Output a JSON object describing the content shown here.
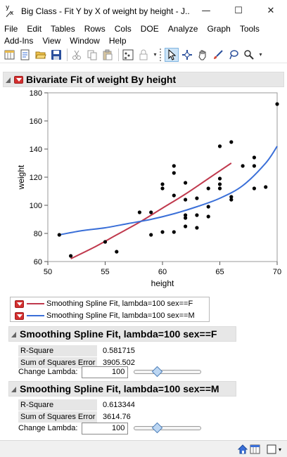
{
  "window": {
    "title": "Big Class - Fit Y by X of weight by height - J...",
    "icon_sup": "y",
    "icon_sub": "x",
    "minimize_glyph": "—",
    "maximize_glyph": "☐",
    "close_glyph": "✕"
  },
  "menu": {
    "row1": [
      "File",
      "Edit",
      "Tables",
      "Rows",
      "Cols",
      "DOE",
      "Analyze",
      "Graph",
      "Tools"
    ],
    "row2": [
      "Add-Ins",
      "View",
      "Window",
      "Help"
    ]
  },
  "report": {
    "title": "Bivariate Fit of weight By height"
  },
  "chart_data": {
    "type": "scatter",
    "xlabel": "height",
    "ylabel": "weight",
    "xlim": [
      50,
      70
    ],
    "ylim": [
      60,
      180
    ],
    "xticks": [
      50,
      55,
      60,
      65,
      70
    ],
    "yticks": [
      60,
      80,
      100,
      120,
      140,
      160,
      180
    ],
    "grid": false,
    "points": [
      [
        51,
        79
      ],
      [
        52,
        64
      ],
      [
        55,
        74
      ],
      [
        56,
        67
      ],
      [
        58,
        95
      ],
      [
        59,
        79
      ],
      [
        59,
        95
      ],
      [
        60,
        81
      ],
      [
        60,
        112
      ],
      [
        60,
        115
      ],
      [
        61,
        81
      ],
      [
        61,
        107
      ],
      [
        61,
        123
      ],
      [
        61,
        128
      ],
      [
        62,
        85
      ],
      [
        62,
        91
      ],
      [
        62,
        93
      ],
      [
        62,
        104
      ],
      [
        62,
        116
      ],
      [
        63,
        84
      ],
      [
        63,
        93
      ],
      [
        63,
        105
      ],
      [
        64,
        92
      ],
      [
        64,
        99
      ],
      [
        64,
        112
      ],
      [
        65,
        112
      ],
      [
        65,
        115
      ],
      [
        65,
        119
      ],
      [
        65,
        142
      ],
      [
        66,
        104
      ],
      [
        66,
        106
      ],
      [
        66,
        145
      ],
      [
        67,
        128
      ],
      [
        68,
        112
      ],
      [
        68,
        128
      ],
      [
        68,
        134
      ],
      [
        69,
        113
      ],
      [
        70,
        172
      ]
    ],
    "series": [
      {
        "name": "Smoothing Spline Fit, lambda=100 sex==F",
        "color": "#c0394d",
        "values": [
          [
            52,
            62
          ],
          [
            54,
            70
          ],
          [
            56,
            79
          ],
          [
            58,
            88
          ],
          [
            60,
            98
          ],
          [
            62,
            108
          ],
          [
            64,
            119
          ],
          [
            66,
            130
          ]
        ]
      },
      {
        "name": "Smoothing Spline Fit, lambda=100 sex==M",
        "color": "#3a6fd8",
        "values": [
          [
            51,
            79
          ],
          [
            53,
            82
          ],
          [
            55,
            84
          ],
          [
            57,
            87
          ],
          [
            59,
            90
          ],
          [
            61,
            94
          ],
          [
            63,
            99
          ],
          [
            65,
            105
          ],
          [
            67,
            114
          ],
          [
            69,
            130
          ],
          [
            70,
            142
          ]
        ]
      }
    ],
    "point_color": "#000000"
  },
  "fits": [
    {
      "title": "Smoothing Spline Fit, lambda=100 sex==F",
      "rsquare_label": "R-Square",
      "rsquare": "0.581715",
      "sse_label": "Sum of Squares Error",
      "sse": "3905.502",
      "lambda_label": "Change Lambda:",
      "lambda": "100"
    },
    {
      "title": "Smoothing Spline Fit, lambda=100 sex==M",
      "rsquare_label": "R-Square",
      "rsquare": "0.613344",
      "sse_label": "Sum of Squares Error",
      "sse": "3614.76",
      "lambda_label": "Change Lambda:",
      "lambda": "100"
    }
  ],
  "colors": {
    "hotspot": "#d32f2f",
    "female_fit": "#c0394d",
    "male_fit": "#3a6fd8"
  }
}
